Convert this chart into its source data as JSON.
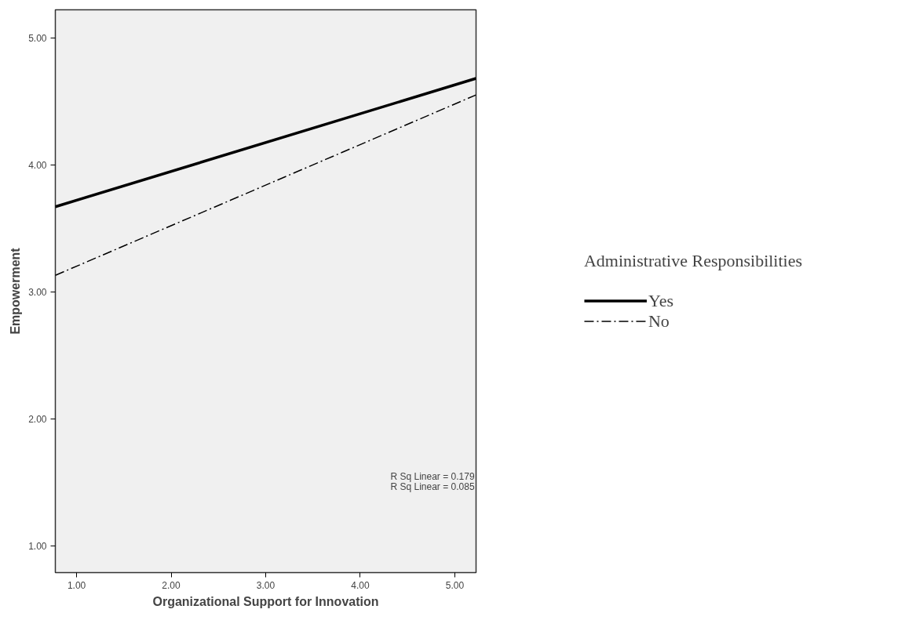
{
  "chart_data": {
    "type": "line",
    "xlabel": "Organizational Support for Innovation",
    "ylabel": "Empowerment",
    "legend_title": "Administrative Responsibilities",
    "legend": "right",
    "x": [
      0.775,
      5.225
    ],
    "series": [
      {
        "name": "Yes",
        "color": "#000000",
        "values": [
          3.67,
          4.68
        ],
        "line_style": "solid"
      },
      {
        "name": "No",
        "color": "#000000",
        "values": [
          3.13,
          4.55
        ],
        "line_style": "dashdot"
      }
    ],
    "xlim": [
      0.775,
      5.225
    ],
    "ylim": [
      0.79,
      5.22
    ],
    "xticks": [
      {
        "value": 1,
        "label": "1.00"
      },
      {
        "value": 2,
        "label": "2.00"
      },
      {
        "value": 3,
        "label": "3.00"
      },
      {
        "value": 4,
        "label": "4.00"
      },
      {
        "value": 5,
        "label": "5.00"
      }
    ],
    "yticks": [
      {
        "value": 1,
        "label": "1.00"
      },
      {
        "value": 2,
        "label": "2.00"
      },
      {
        "value": 3,
        "label": "3.00"
      },
      {
        "value": 4,
        "label": "4.00"
      },
      {
        "value": 5,
        "label": "5.00"
      }
    ],
    "grid": false,
    "annotations": [
      "R Sq Linear = 0.179",
      "R Sq Linear = 0.085"
    ]
  }
}
